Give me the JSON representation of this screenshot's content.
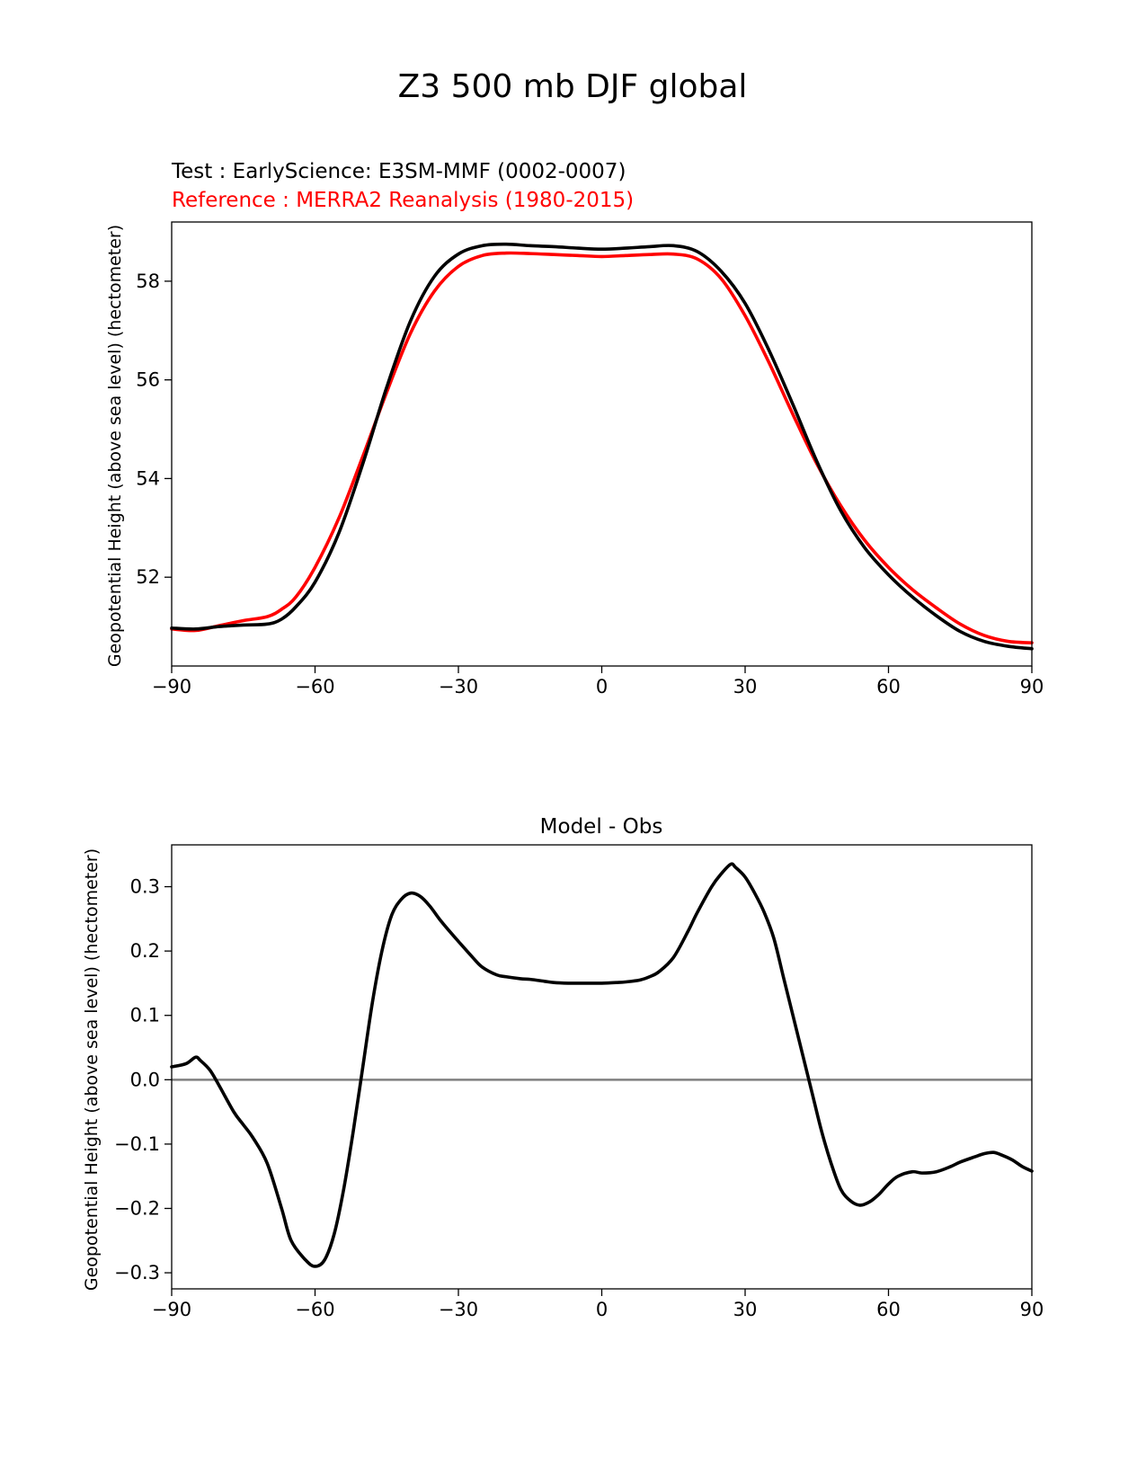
{
  "figure_title": "Z3 500 mb DJF global",
  "chart_data": [
    {
      "type": "line",
      "test_label": "Test : EarlyScience: E3SM-MMF (0002-0007)",
      "reference_label": "Reference : MERRA2 Reanalysis (1980-2015)",
      "ylabel": "Geopotential Height (above sea level) (hectometer)",
      "xlim": [
        -90,
        90
      ],
      "ylim": [
        50.2,
        59.2
      ],
      "xticks": [
        -90,
        -60,
        -30,
        0,
        30,
        60,
        90
      ],
      "xtick_labels": [
        "−90",
        "−60",
        "−30",
        "0",
        "30",
        "60",
        "90"
      ],
      "yticks": [
        52,
        54,
        56,
        58
      ],
      "ytick_labels": [
        "52",
        "54",
        "56",
        "58"
      ],
      "series": [
        {
          "name": "Test",
          "color": "#000000",
          "x": [
            -90,
            -85,
            -80,
            -75,
            -70,
            -67,
            -64,
            -60,
            -55,
            -50,
            -45,
            -40,
            -35,
            -30,
            -25,
            -20,
            -15,
            -10,
            -5,
            0,
            5,
            10,
            15,
            20,
            25,
            30,
            35,
            40,
            45,
            50,
            55,
            60,
            65,
            70,
            75,
            80,
            85,
            90
          ],
          "y": [
            50.97,
            50.95,
            51.0,
            51.03,
            51.05,
            51.15,
            51.4,
            51.9,
            52.9,
            54.3,
            55.85,
            57.2,
            58.1,
            58.55,
            58.72,
            58.75,
            58.72,
            58.7,
            58.67,
            58.65,
            58.67,
            58.7,
            58.72,
            58.6,
            58.2,
            57.55,
            56.6,
            55.5,
            54.35,
            53.35,
            52.6,
            52.05,
            51.6,
            51.22,
            50.9,
            50.7,
            50.6,
            50.55
          ]
        },
        {
          "name": "Reference",
          "color": "#ff0000",
          "x": [
            -90,
            -85,
            -80,
            -75,
            -70,
            -67,
            -64,
            -60,
            -55,
            -50,
            -45,
            -40,
            -35,
            -30,
            -25,
            -20,
            -15,
            -10,
            -5,
            0,
            5,
            10,
            15,
            20,
            25,
            30,
            35,
            40,
            45,
            50,
            55,
            60,
            65,
            70,
            75,
            80,
            85,
            90
          ],
          "y": [
            50.95,
            50.92,
            51.02,
            51.12,
            51.2,
            51.35,
            51.6,
            52.2,
            53.2,
            54.45,
            55.75,
            56.95,
            57.8,
            58.3,
            58.52,
            58.57,
            58.56,
            58.54,
            58.52,
            58.5,
            58.52,
            58.54,
            58.55,
            58.45,
            58.05,
            57.3,
            56.35,
            55.3,
            54.3,
            53.45,
            52.75,
            52.2,
            51.75,
            51.38,
            51.05,
            50.82,
            50.7,
            50.67
          ]
        }
      ]
    },
    {
      "type": "line",
      "title": "Model - Obs",
      "ylabel": "Geopotential Height (above sea level) (hectometer)",
      "xlim": [
        -90,
        90
      ],
      "ylim": [
        -0.325,
        0.365
      ],
      "xticks": [
        -90,
        -60,
        -30,
        0,
        30,
        60,
        90
      ],
      "xtick_labels": [
        "−90",
        "−60",
        "−30",
        "0",
        "30",
        "60",
        "90"
      ],
      "yticks": [
        0.3,
        0.2,
        0.1,
        0.0,
        -0.1,
        -0.2,
        -0.3
      ],
      "ytick_labels": [
        "0.3",
        "0.2",
        "0.1",
        "0.0",
        "−0.1",
        "−0.2",
        "−0.3"
      ],
      "zero_line_color": "#808080",
      "series": [
        {
          "name": "Model - Obs",
          "color": "#000000",
          "x": [
            -90,
            -87,
            -85,
            -84,
            -82,
            -80,
            -77,
            -75,
            -73,
            -70,
            -67,
            -65,
            -62,
            -60,
            -58,
            -56,
            -54,
            -52,
            -50,
            -48,
            -46,
            -44,
            -42,
            -40,
            -38,
            -36,
            -34,
            -32,
            -30,
            -27,
            -25,
            -22,
            -20,
            -17,
            -15,
            -12,
            -10,
            -7,
            -5,
            -2,
            0,
            3,
            5,
            8,
            10,
            12,
            15,
            18,
            20,
            23,
            25,
            27,
            28,
            30,
            32,
            34,
            36,
            38,
            40,
            42,
            44,
            46,
            48,
            50,
            52,
            54,
            56,
            58,
            60,
            62,
            65,
            67,
            70,
            73,
            75,
            78,
            80,
            82,
            84,
            86,
            88,
            90
          ],
          "y": [
            0.02,
            0.025,
            0.035,
            0.03,
            0.015,
            -0.01,
            -0.05,
            -0.07,
            -0.09,
            -0.13,
            -0.2,
            -0.25,
            -0.28,
            -0.29,
            -0.28,
            -0.24,
            -0.17,
            -0.08,
            0.02,
            0.12,
            0.2,
            0.255,
            0.28,
            0.29,
            0.285,
            0.27,
            0.25,
            0.232,
            0.215,
            0.19,
            0.175,
            0.163,
            0.16,
            0.157,
            0.156,
            0.153,
            0.151,
            0.15,
            0.15,
            0.15,
            0.15,
            0.151,
            0.152,
            0.155,
            0.16,
            0.168,
            0.19,
            0.23,
            0.26,
            0.3,
            0.32,
            0.335,
            0.33,
            0.315,
            0.29,
            0.26,
            0.22,
            0.16,
            0.1,
            0.04,
            -0.02,
            -0.08,
            -0.13,
            -0.17,
            -0.188,
            -0.195,
            -0.19,
            -0.178,
            -0.162,
            -0.15,
            -0.143,
            -0.145,
            -0.143,
            -0.135,
            -0.128,
            -0.12,
            -0.115,
            -0.113,
            -0.118,
            -0.125,
            -0.135,
            -0.142
          ]
        }
      ]
    }
  ]
}
